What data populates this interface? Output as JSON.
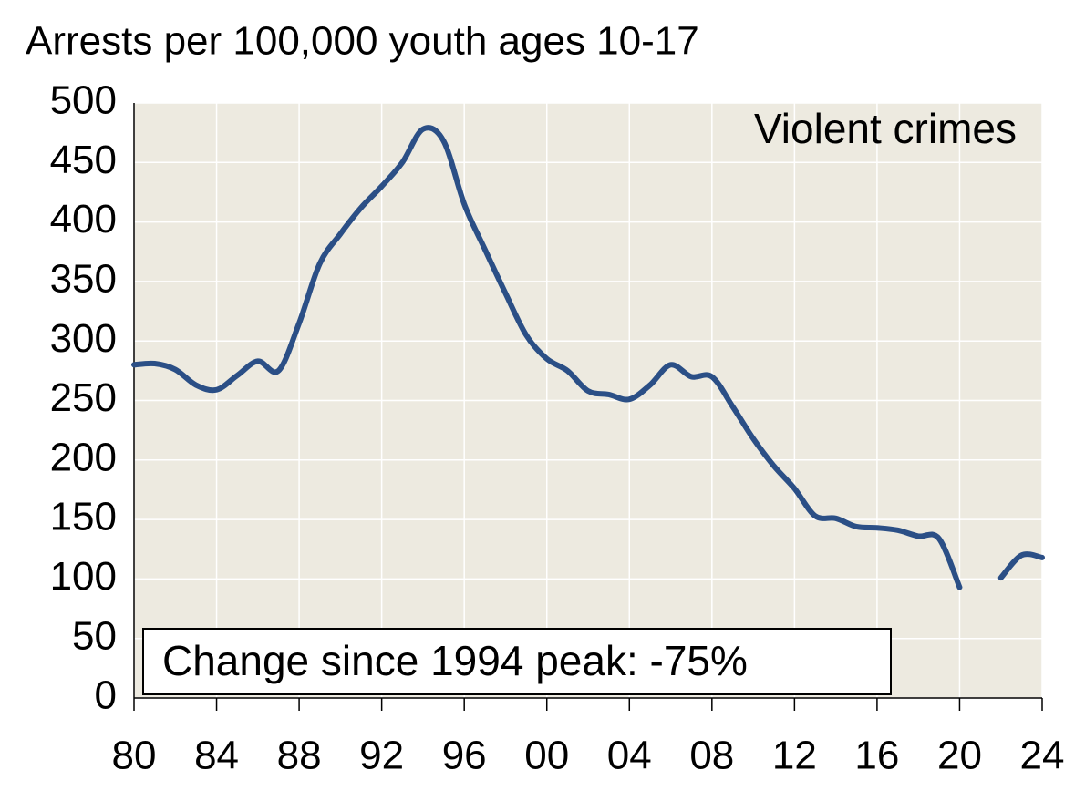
{
  "chart_data": {
    "type": "line",
    "title": "Arrests per 100,000 youth ages 10-17",
    "annotations": [
      "Violent crimes",
      "Change since 1994 peak: -75%"
    ],
    "x": [
      1980,
      1981,
      1982,
      1983,
      1984,
      1985,
      1986,
      1987,
      1988,
      1989,
      1990,
      1991,
      1992,
      1993,
      1994,
      1995,
      1996,
      1997,
      1998,
      1999,
      2000,
      2001,
      2002,
      2003,
      2004,
      2005,
      2006,
      2007,
      2008,
      2009,
      2010,
      2011,
      2012,
      2013,
      2014,
      2015,
      2016,
      2017,
      2018,
      2019,
      2020,
      2021,
      2022,
      2023,
      2024
    ],
    "series": [
      {
        "name": "Violent crimes",
        "color": "#2b4f86",
        "values": [
          280,
          281,
          276,
          263,
          259,
          271,
          283,
          275,
          315,
          365,
          390,
          412,
          430,
          450,
          478,
          468,
          415,
          377,
          340,
          305,
          285,
          275,
          258,
          255,
          251,
          263,
          280,
          270,
          270,
          245,
          218,
          195,
          176,
          153,
          151,
          144,
          143,
          141,
          136,
          134,
          93,
          null,
          101,
          120,
          118
        ]
      }
    ],
    "xlim": [
      1980,
      2024
    ],
    "xticks": [
      {
        "value": 1980,
        "label": "80"
      },
      {
        "value": 1984,
        "label": "84"
      },
      {
        "value": 1988,
        "label": "88"
      },
      {
        "value": 1992,
        "label": "92"
      },
      {
        "value": 1996,
        "label": "96"
      },
      {
        "value": 2000,
        "label": "00"
      },
      {
        "value": 2004,
        "label": "04"
      },
      {
        "value": 2008,
        "label": "08"
      },
      {
        "value": 2012,
        "label": "12"
      },
      {
        "value": 2016,
        "label": "16"
      },
      {
        "value": 2020,
        "label": "20"
      },
      {
        "value": 2024,
        "label": "24"
      }
    ],
    "ylim": [
      0,
      500
    ],
    "yticks": [
      0,
      50,
      100,
      150,
      200,
      250,
      300,
      350,
      400,
      450,
      500
    ],
    "grid": true,
    "background": "#edeae0"
  }
}
